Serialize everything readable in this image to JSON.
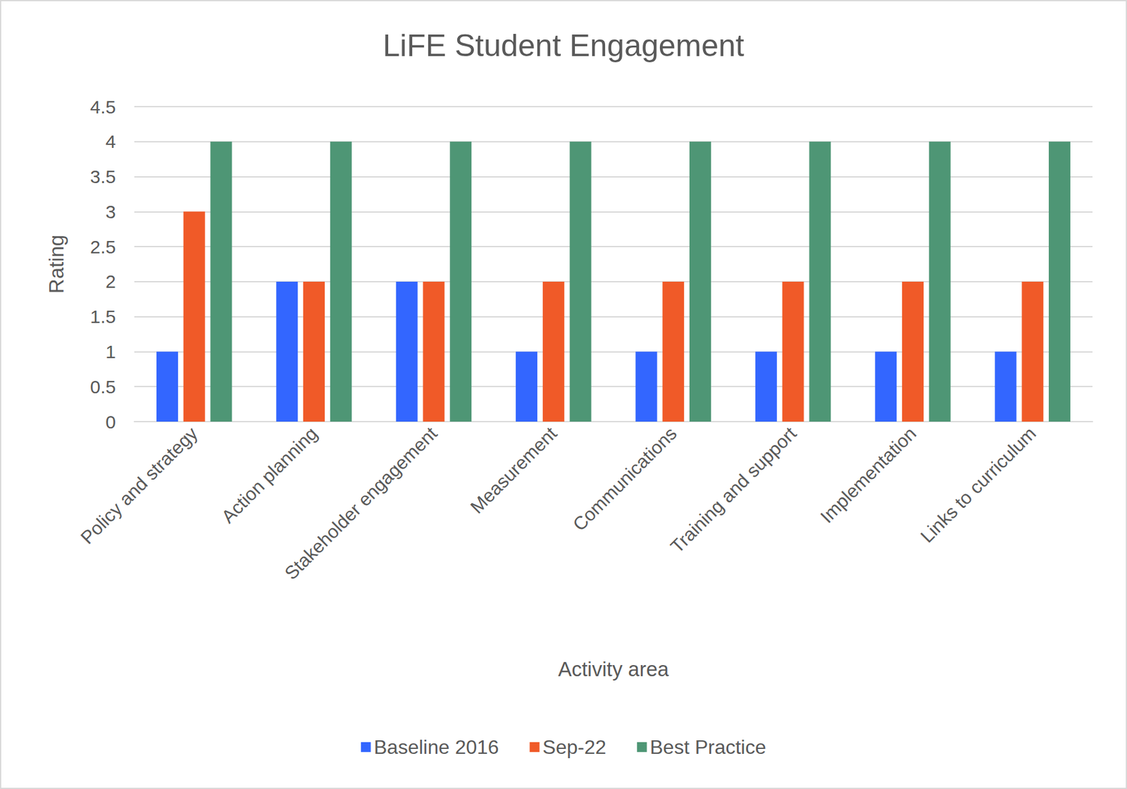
{
  "chart_data": {
    "type": "bar",
    "title": "LiFE Student Engagement",
    "x_label": "Activity area",
    "y_label": "Rating",
    "categories": [
      "Policy and strategy",
      "Action planning",
      "Stakeholder engagement",
      "Measurement",
      "Communications",
      "Training and support",
      "Implementation",
      "Links to curriculum"
    ],
    "series": [
      {
        "name": "Baseline 2016",
        "color": "#3366FF",
        "values": [
          1,
          2,
          2,
          1,
          1,
          1,
          1,
          1
        ]
      },
      {
        "name": "Sep-22",
        "color": "#F05A28",
        "values": [
          3,
          2,
          2,
          2,
          2,
          2,
          2,
          2
        ]
      },
      {
        "name": "Best Practice",
        "color": "#4E9675",
        "values": [
          4,
          4,
          4,
          4,
          4,
          4,
          4,
          4
        ]
      }
    ],
    "ylim": [
      0,
      4.5
    ],
    "yticks": [
      0,
      0.5,
      1,
      1.5,
      2,
      2.5,
      3,
      3.5,
      4,
      4.5
    ],
    "grid": true,
    "legend": "bottom"
  }
}
